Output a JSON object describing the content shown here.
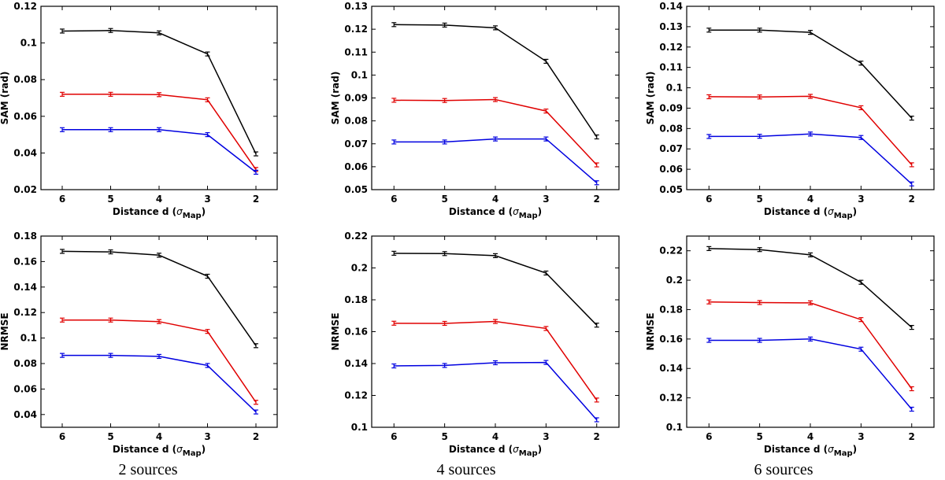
{
  "chart_data": [
    {
      "type": "line",
      "panel": "sam-2-sources",
      "categories": [
        "6",
        "5",
        "4",
        "3",
        "2"
      ],
      "xlabel": "Distance d",
      "xlabel_unit": "σ",
      "xlabel_unit_sub": "Map",
      "ylabel": "SAM (rad)",
      "ylim": [
        0.02,
        0.12
      ],
      "yticks": [
        "0.02",
        "0.04",
        "0.06",
        "0.08",
        "0.1",
        "0.12"
      ],
      "series": [
        {
          "color": "#000000",
          "values": [
            0.1065,
            0.1068,
            0.1055,
            0.094,
            0.0395
          ]
        },
        {
          "color": "#e00000",
          "values": [
            0.072,
            0.072,
            0.0718,
            0.069,
            0.031
          ]
        },
        {
          "color": "#0000e0",
          "values": [
            0.0527,
            0.0527,
            0.0527,
            0.05,
            0.0295
          ]
        }
      ]
    },
    {
      "type": "line",
      "panel": "sam-4-sources",
      "categories": [
        "6",
        "5",
        "4",
        "3",
        "2"
      ],
      "xlabel": "Distance d",
      "xlabel_unit": "σ",
      "xlabel_unit_sub": "Map",
      "ylabel": "SAM (rad)",
      "ylim": [
        0.05,
        0.13
      ],
      "yticks": [
        "0.05",
        "0.06",
        "0.07",
        "0.08",
        "0.09",
        "0.1",
        "0.11",
        "0.12",
        "0.13"
      ],
      "series": [
        {
          "color": "#000000",
          "values": [
            0.122,
            0.1218,
            0.1206,
            0.106,
            0.073
          ]
        },
        {
          "color": "#e00000",
          "values": [
            0.089,
            0.0889,
            0.0893,
            0.0843,
            0.0608
          ]
        },
        {
          "color": "#0000e0",
          "values": [
            0.0708,
            0.0708,
            0.0721,
            0.0721,
            0.053
          ]
        }
      ]
    },
    {
      "type": "line",
      "panel": "sam-6-sources",
      "categories": [
        "6",
        "5",
        "4",
        "3",
        "2"
      ],
      "xlabel": "Distance d",
      "xlabel_unit": "σ",
      "xlabel_unit_sub": "Map",
      "ylabel": "SAM (rad)",
      "ylim": [
        0.05,
        0.14
      ],
      "yticks": [
        "0.05",
        "0.06",
        "0.07",
        "0.08",
        "0.09",
        "0.1",
        "0.11",
        "0.12",
        "0.13",
        "0.14"
      ],
      "series": [
        {
          "color": "#000000",
          "values": [
            0.1283,
            0.1283,
            0.1272,
            0.1121,
            0.0851
          ]
        },
        {
          "color": "#e00000",
          "values": [
            0.0956,
            0.0955,
            0.0958,
            0.0902,
            0.0622
          ]
        },
        {
          "color": "#0000e0",
          "values": [
            0.0761,
            0.0762,
            0.0773,
            0.0756,
            0.0528
          ]
        }
      ]
    },
    {
      "type": "line",
      "panel": "nrmse-2-sources",
      "categories": [
        "6",
        "5",
        "4",
        "3",
        "2"
      ],
      "xlabel": "Distance d",
      "xlabel_unit": "σ",
      "xlabel_unit_sub": "Map",
      "ylabel": "NRMSE",
      "ylim": [
        0.03,
        0.18
      ],
      "yticks": [
        "0.04",
        "0.06",
        "0.08",
        "0.1",
        "0.12",
        "0.14",
        "0.16",
        "0.18"
      ],
      "series": [
        {
          "color": "#000000",
          "values": [
            0.168,
            0.1676,
            0.165,
            0.1485,
            0.094
          ]
        },
        {
          "color": "#e00000",
          "values": [
            0.1141,
            0.1141,
            0.1129,
            0.1052,
            0.0496
          ]
        },
        {
          "color": "#0000e0",
          "values": [
            0.0864,
            0.0864,
            0.0856,
            0.0785,
            0.042
          ]
        }
      ]
    },
    {
      "type": "line",
      "panel": "nrmse-4-sources",
      "categories": [
        "6",
        "5",
        "4",
        "3",
        "2"
      ],
      "xlabel": "Distance d",
      "xlabel_unit": "σ",
      "xlabel_unit_sub": "Map",
      "ylabel": "NRMSE",
      "ylim": [
        0.1,
        0.22
      ],
      "yticks": [
        "0.1",
        "0.12",
        "0.14",
        "0.16",
        "0.18",
        "0.2",
        "0.22"
      ],
      "series": [
        {
          "color": "#000000",
          "values": [
            0.2092,
            0.209,
            0.2077,
            0.1968,
            0.1641
          ]
        },
        {
          "color": "#e00000",
          "values": [
            0.1653,
            0.1652,
            0.1664,
            0.162,
            0.1171
          ]
        },
        {
          "color": "#0000e0",
          "values": [
            0.1385,
            0.1388,
            0.1405,
            0.1407,
            0.1047
          ]
        }
      ]
    },
    {
      "type": "line",
      "panel": "nrmse-6-sources",
      "categories": [
        "6",
        "5",
        "4",
        "3",
        "2"
      ],
      "xlabel": "Distance d",
      "xlabel_unit": "σ",
      "xlabel_unit_sub": "Map",
      "ylabel": "NRMSE",
      "ylim": [
        0.1,
        0.23
      ],
      "yticks": [
        "0.1",
        "0.12",
        "0.14",
        "0.16",
        "0.18",
        "0.2",
        "0.22"
      ],
      "series": [
        {
          "color": "#000000",
          "values": [
            0.2215,
            0.2208,
            0.2172,
            0.1986,
            0.1679
          ]
        },
        {
          "color": "#e00000",
          "values": [
            0.1852,
            0.1848,
            0.1846,
            0.1732,
            0.1262
          ]
        },
        {
          "color": "#0000e0",
          "values": [
            0.1591,
            0.1591,
            0.16,
            0.1531,
            0.1123
          ]
        }
      ]
    }
  ],
  "captions": [
    "2 sources",
    "4 sources",
    "6 sources"
  ]
}
